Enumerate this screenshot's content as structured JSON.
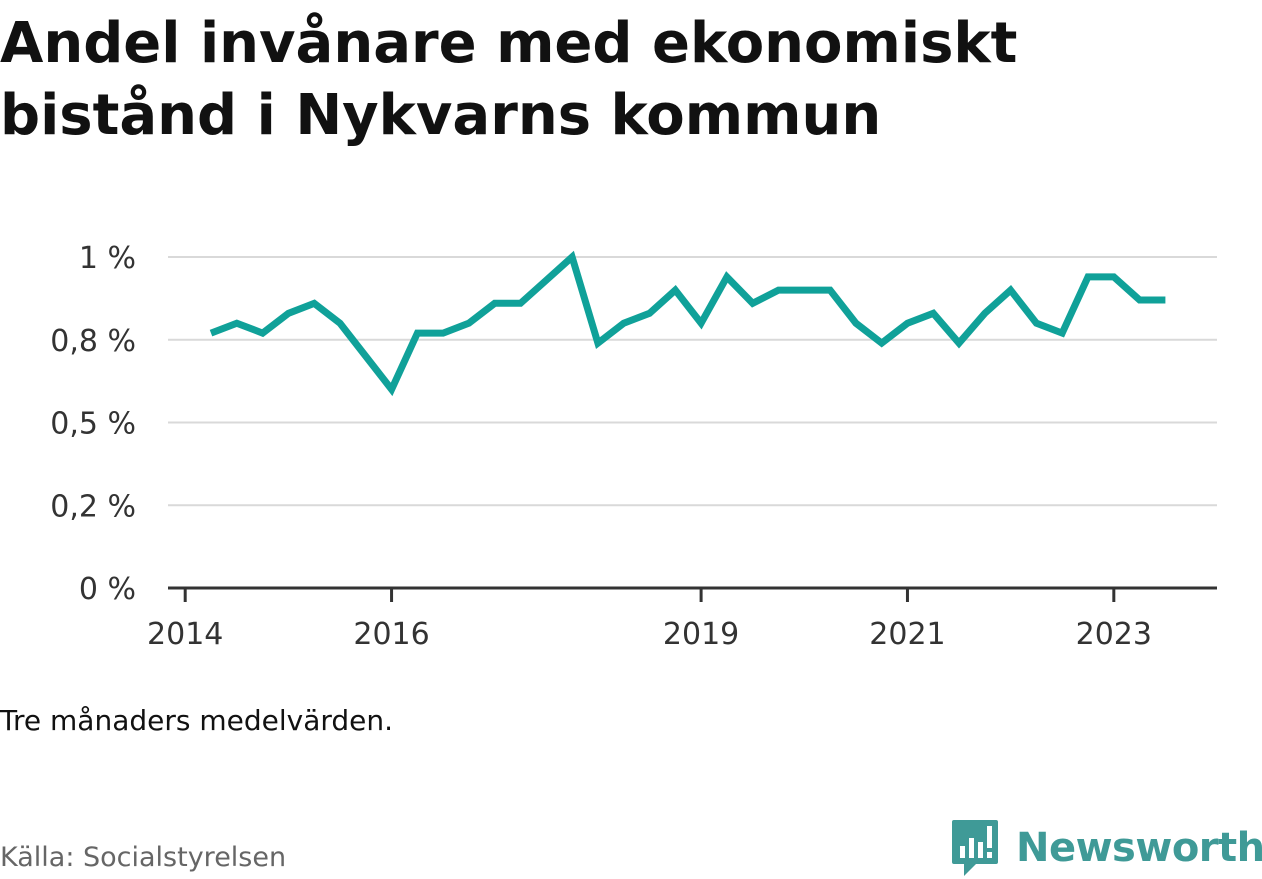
{
  "title": "Andel invånare med ekonomiskt bistånd i Nykvarns kommun",
  "note": "Tre månaders medelvärden.",
  "source": "Källa: Socialstyrelsen",
  "brand": {
    "name": "Newsworthy",
    "icon": "newsworthy-logo-icon",
    "color": "#3f9a97"
  },
  "colors": {
    "line": "#10a199",
    "grid": "#d9d9d9",
    "axis": "#333333"
  },
  "chart_data": {
    "type": "line",
    "title": "Andel invånare med ekonomiskt bistånd i Nykvarns kommun",
    "xlabel": "",
    "ylabel": "",
    "grid": true,
    "ylim": [
      0,
      1.0
    ],
    "yticks": [
      0,
      0.25,
      0.5,
      0.75,
      1.0
    ],
    "ytick_labels": [
      "0 %",
      "0,2 %",
      "0,5 %",
      "0,8 %",
      "1 %"
    ],
    "xlim": [
      "2013-11",
      "2024-01"
    ],
    "xticks": [
      "2014-01",
      "2016-01",
      "2019-01",
      "2021-01",
      "2023-01"
    ],
    "xtick_labels": [
      "2014",
      "2016",
      "2019",
      "2021",
      "2023"
    ],
    "series": [
      {
        "x": [
          "2014-04",
          "2014-07",
          "2014-10",
          "2015-01",
          "2015-04",
          "2015-07",
          "2015-10",
          "2016-01",
          "2016-04",
          "2016-07",
          "2016-10",
          "2017-01",
          "2017-04",
          "2017-07",
          "2017-10",
          "2018-01",
          "2018-04",
          "2018-07",
          "2018-10",
          "2019-01",
          "2019-04",
          "2019-07",
          "2019-10",
          "2020-01",
          "2020-04",
          "2020-07",
          "2020-10",
          "2021-01",
          "2021-04",
          "2021-07",
          "2021-10",
          "2022-01",
          "2022-04",
          "2022-07",
          "2022-10",
          "2023-01",
          "2023-04",
          "2023-07"
        ],
        "values": [
          0.77,
          0.8,
          0.77,
          0.83,
          0.86,
          0.8,
          0.7,
          0.6,
          0.77,
          0.77,
          0.8,
          0.86,
          0.86,
          0.93,
          1.0,
          0.74,
          0.8,
          0.83,
          0.9,
          0.8,
          0.94,
          0.86,
          0.9,
          0.9,
          0.9,
          0.8,
          0.74,
          0.8,
          0.83,
          0.74,
          0.83,
          0.9,
          0.8,
          0.77,
          0.94,
          0.94,
          0.87,
          0.87
        ]
      }
    ]
  }
}
